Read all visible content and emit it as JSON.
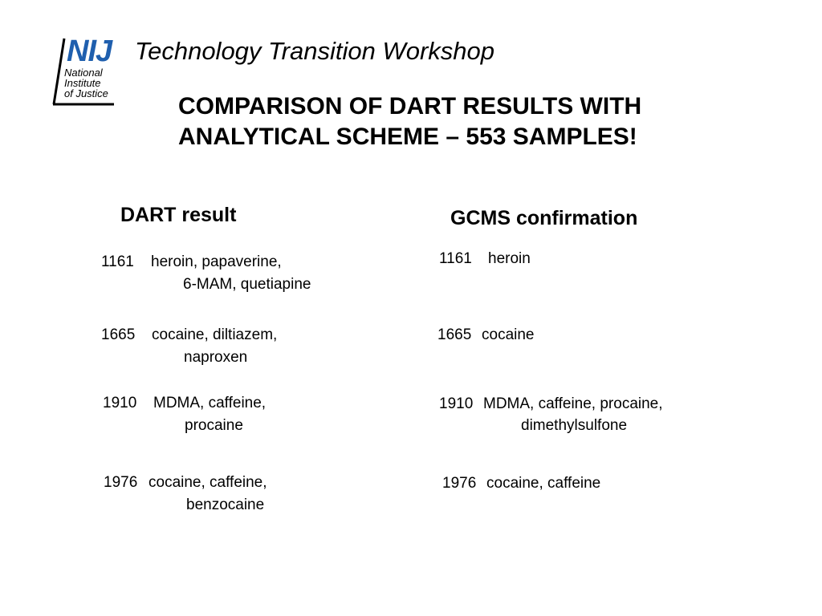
{
  "logo": {
    "abbrev": "NIJ",
    "lines": [
      "National",
      "Institute",
      "of Justice"
    ],
    "color": "#1f5fae"
  },
  "header": {
    "workshop_title": "Technology Transition Workshop"
  },
  "slide": {
    "title_lines": [
      "COMPARISON OF DART RESULTS WITH",
      "ANALYTICAL SCHEME – 553 SAMPLES!"
    ]
  },
  "dart": {
    "header": "DART result",
    "entries": [
      {
        "sample": "1161",
        "line1": "heroin, papaverine,",
        "line2": "6-MAM, quetiapine"
      },
      {
        "sample": "1665",
        "line1": "cocaine, diltiazem,",
        "line2": "naproxen"
      },
      {
        "sample": "1910",
        "line1": "MDMA, caffeine,",
        "line2": "procaine"
      },
      {
        "sample": "1976",
        "line1": "cocaine, caffeine,",
        "line2": "benzocaine"
      }
    ]
  },
  "gcms": {
    "header": "GCMS confirmation",
    "entries": [
      {
        "sample": "1161",
        "line1": "heroin",
        "line2": ""
      },
      {
        "sample": "1665",
        "line1": "cocaine",
        "line2": ""
      },
      {
        "sample": "1910",
        "line1": "MDMA, caffeine, procaine,",
        "line2": "dimethylsulfone"
      },
      {
        "sample": "1976",
        "line1": "cocaine, caffeine",
        "line2": ""
      }
    ]
  }
}
